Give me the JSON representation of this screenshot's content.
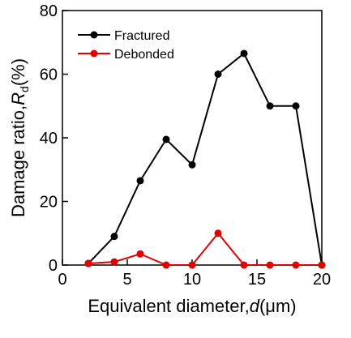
{
  "chart_data": {
    "type": "line",
    "title": "",
    "xlabel": "Equivalent diameter,",
    "xlabel_var": "d",
    "xlabel_unit": "(μm)",
    "ylabel": "Damage ratio,",
    "ylabel_var": "R",
    "ylabel_sub": "d",
    "ylabel_unit": "(%)",
    "xlim": [
      0,
      20
    ],
    "ylim": [
      0,
      80
    ],
    "xticks": [
      0,
      5,
      10,
      15,
      20
    ],
    "yticks": [
      0,
      20,
      40,
      60,
      80
    ],
    "grid": false,
    "legend_position": "top-left",
    "series": [
      {
        "name": "Fractured",
        "color": "#000000",
        "x": [
          2,
          4,
          6,
          8,
          10,
          12,
          14,
          16,
          18,
          20
        ],
        "y": [
          0.5,
          9,
          26.5,
          39.5,
          31.5,
          60,
          66.5,
          50,
          50,
          0
        ]
      },
      {
        "name": "Debonded",
        "color": "#e00000",
        "x": [
          2,
          4,
          6,
          8,
          10,
          12,
          14,
          16,
          18,
          20
        ],
        "y": [
          0.5,
          1,
          3.5,
          0,
          0,
          10,
          0,
          0,
          0,
          0
        ]
      }
    ]
  }
}
